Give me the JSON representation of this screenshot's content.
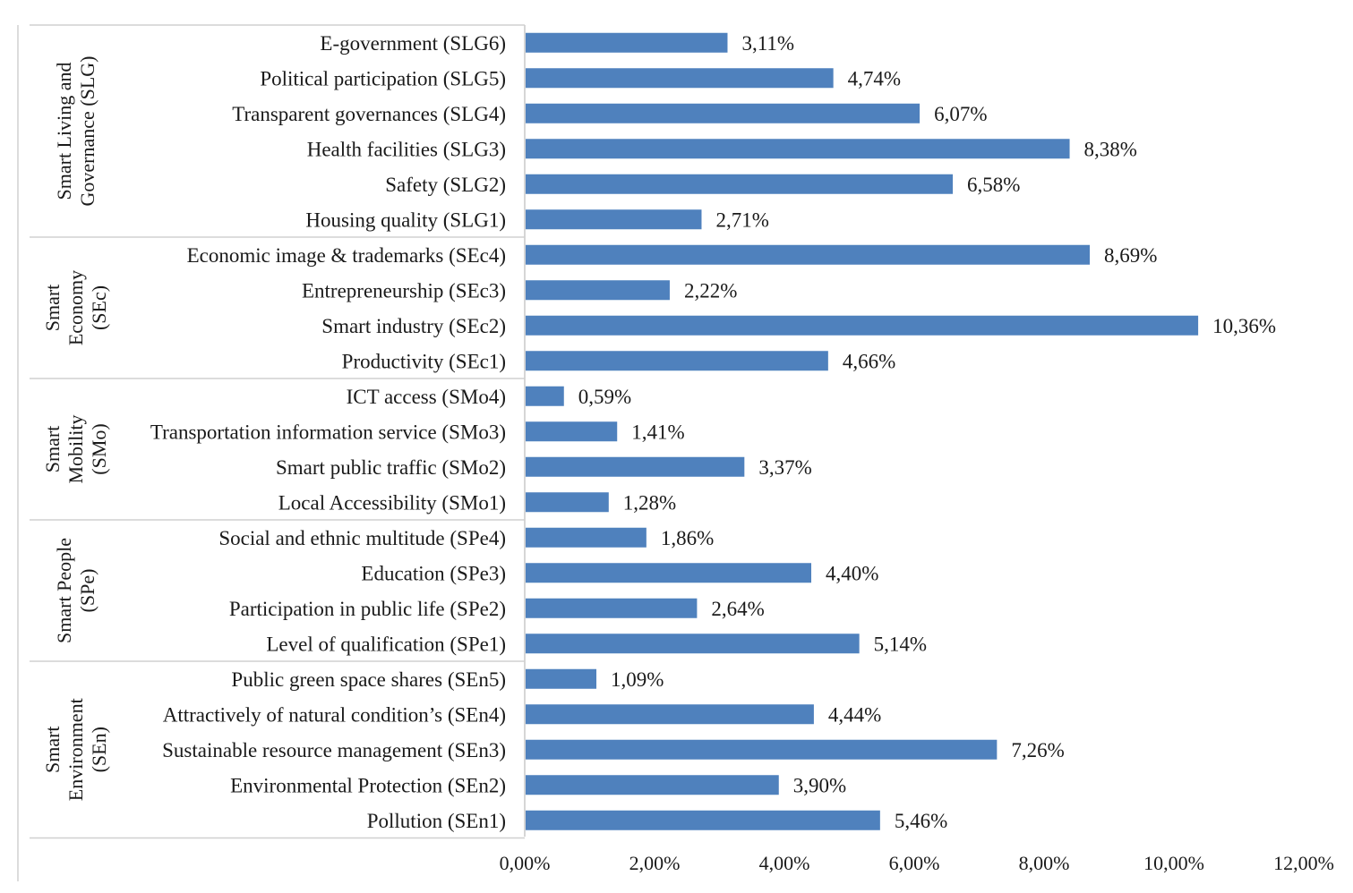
{
  "chart_data": {
    "type": "bar",
    "orientation": "horizontal",
    "bar_color": "#4f81bd",
    "x_ticks": [
      "0,00%",
      "2,00%",
      "4,00%",
      "6,00%",
      "8,00%",
      "10,00%",
      "12,00%"
    ],
    "xlim": [
      0,
      12
    ],
    "groups": [
      {
        "name_lines": [
          "Smart Living and",
          "Governance (SLG)"
        ],
        "items": [
          {
            "label": "E-government  (SLG6)",
            "value": 3.11,
            "value_label": "3,11%"
          },
          {
            "label": "Political participation (SLG5)",
            "value": 4.74,
            "value_label": "4,74%"
          },
          {
            "label": "Transparent governances  (SLG4)",
            "value": 6.07,
            "value_label": "6,07%"
          },
          {
            "label": "Health facilities (SLG3)",
            "value": 8.38,
            "value_label": "8,38%"
          },
          {
            "label": "Safety (SLG2)",
            "value": 6.58,
            "value_label": "6,58%"
          },
          {
            "label": "Housing quality  (SLG1)",
            "value": 2.71,
            "value_label": "2,71%"
          }
        ]
      },
      {
        "name_lines": [
          "Smart",
          "Economy",
          "(SEc)"
        ],
        "items": [
          {
            "label": "Economic image & trademarks  (SEc4)",
            "value": 8.69,
            "value_label": "8,69%"
          },
          {
            "label": "Entrepreneurship  (SEc3)",
            "value": 2.22,
            "value_label": "2,22%"
          },
          {
            "label": "Smart industry (SEc2)",
            "value": 10.36,
            "value_label": "10,36%"
          },
          {
            "label": "Productivity (SEc1)",
            "value": 4.66,
            "value_label": "4,66%"
          }
        ]
      },
      {
        "name_lines": [
          "Smart",
          "Mobility",
          "(SMo)"
        ],
        "items": [
          {
            "label": "ICT access  (SMo4)",
            "value": 0.59,
            "value_label": "0,59%"
          },
          {
            "label": "Transportation information service (SMo3)",
            "value": 1.41,
            "value_label": "1,41%"
          },
          {
            "label": "Smart public traffic   (SMo2)",
            "value": 3.37,
            "value_label": "3,37%"
          },
          {
            "label": "Local Accessibility  (SMo1)",
            "value": 1.28,
            "value_label": "1,28%"
          }
        ]
      },
      {
        "name_lines": [
          "Smart People",
          "(SPe)"
        ],
        "items": [
          {
            "label": "Social and ethnic multitude (SPe4)",
            "value": 1.86,
            "value_label": "1,86%"
          },
          {
            "label": "Education (SPe3)",
            "value": 4.4,
            "value_label": "4,40%"
          },
          {
            "label": "Participation in public life   (SPe2)",
            "value": 2.64,
            "value_label": "2,64%"
          },
          {
            "label": "Level of qualification (SPe1)",
            "value": 5.14,
            "value_label": "5,14%"
          }
        ]
      },
      {
        "name_lines": [
          "Smart",
          "Environment",
          "(SEn)"
        ],
        "items": [
          {
            "label": "Public green space shares  (SEn5)",
            "value": 1.09,
            "value_label": "1,09%"
          },
          {
            "label": "Attractively of natural condition’s (SEn4)",
            "value": 4.44,
            "value_label": "4,44%"
          },
          {
            "label": "Sustainable resource management (SEn3)",
            "value": 7.26,
            "value_label": "7,26%"
          },
          {
            "label": "Environmental Protection  (SEn2)",
            "value": 3.9,
            "value_label": "3,90%"
          },
          {
            "label": "Pollution (SEn1)",
            "value": 5.46,
            "value_label": "5,46%"
          }
        ]
      }
    ]
  }
}
